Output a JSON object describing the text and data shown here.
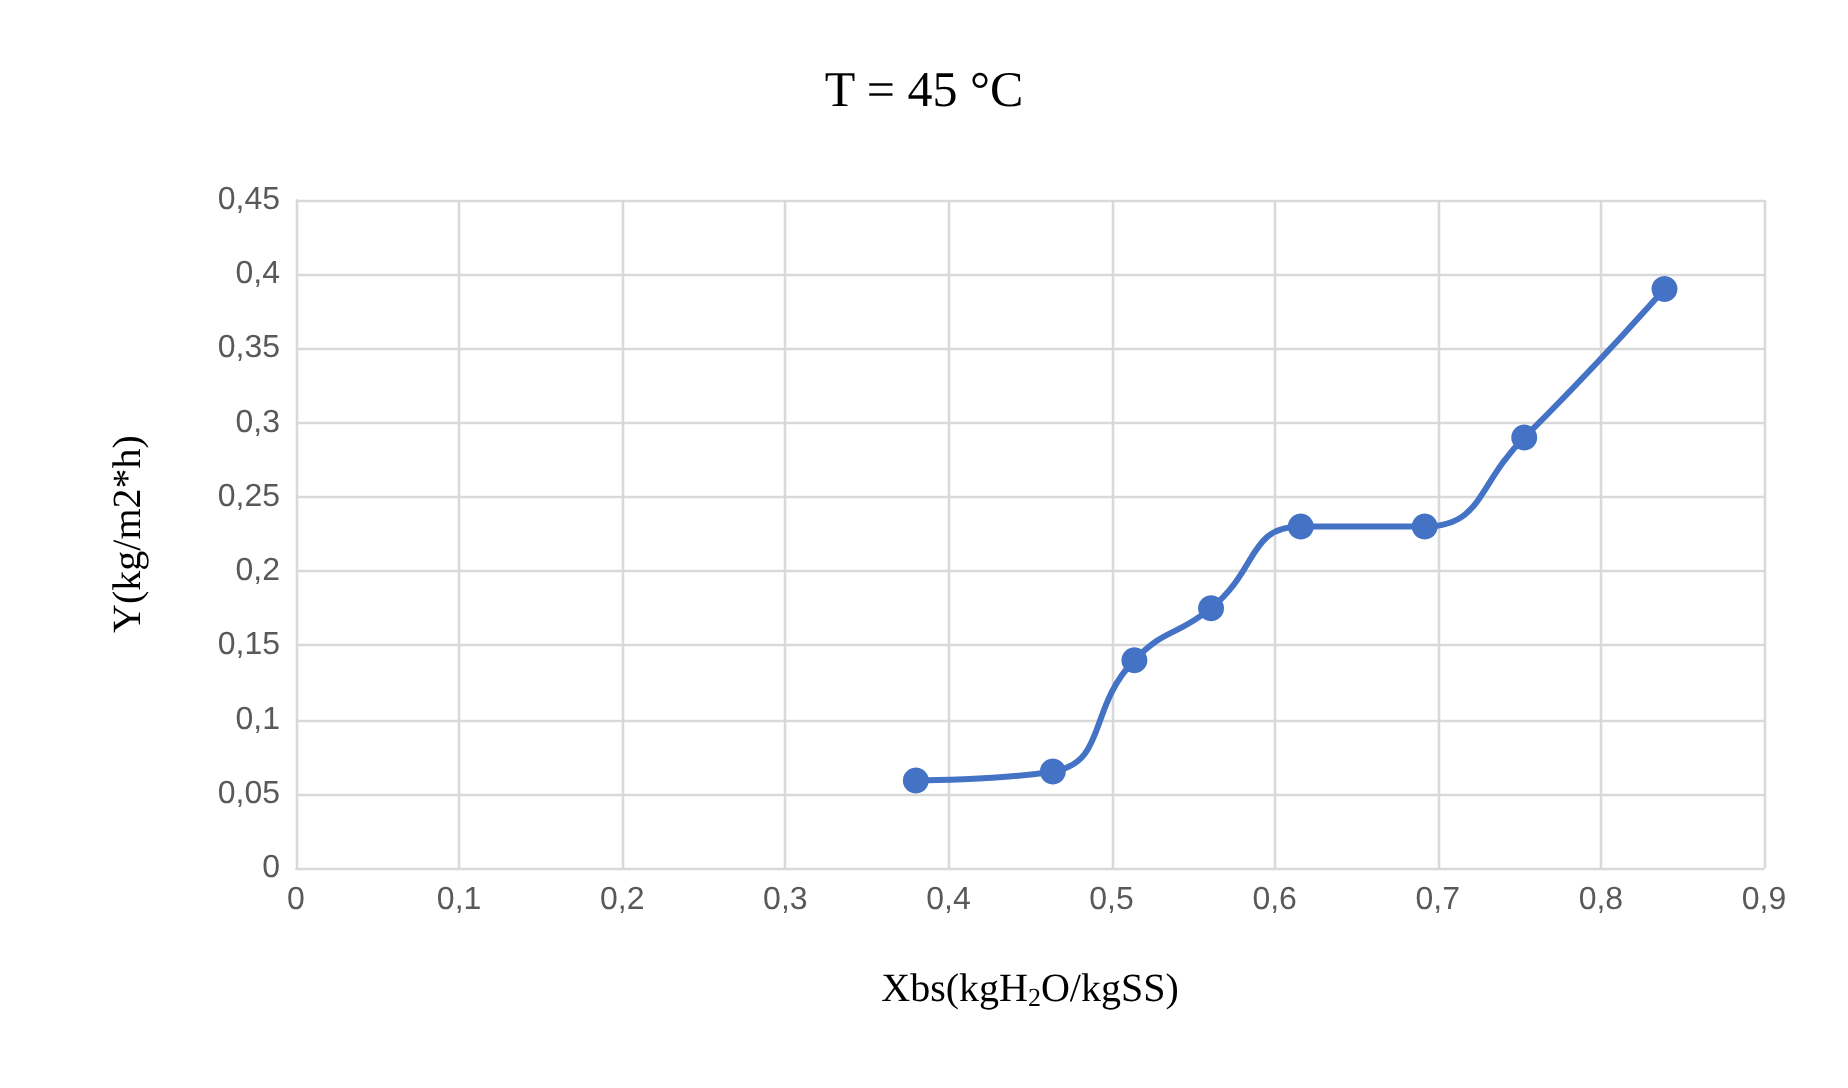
{
  "chart_data": {
    "type": "line",
    "title": "T = 45 °C",
    "xlabel": "Xbs(kgH$_{2}$O/kgSS)",
    "ylabel": "Y(kg/m2*h)",
    "x": [
      0.38,
      0.464,
      0.514,
      0.561,
      0.616,
      0.692,
      0.753,
      0.839
    ],
    "series": [
      {
        "color": "#4472c4",
        "values": [
          0.059,
          0.065,
          0.14,
          0.175,
          0.23,
          0.23,
          0.29,
          0.39
        ]
      }
    ],
    "xlim": [
      0,
      0.9
    ],
    "xticks": [
      0,
      {
        "value": 0.1,
        "label": "0,1"
      },
      {
        "value": 0.2,
        "label": "0,2"
      },
      {
        "value": 0.3,
        "label": "0,3"
      },
      {
        "value": 0.4,
        "label": "0,4"
      },
      {
        "value": 0.5,
        "label": "0,5"
      },
      {
        "value": 0.6,
        "label": "0,6"
      },
      {
        "value": 0.7,
        "label": "0,7"
      },
      {
        "value": 0.8,
        "label": "0,8"
      },
      {
        "value": 0.9,
        "label": "0,9"
      }
    ],
    "ylim": [
      0,
      0.45
    ],
    "yticks": [
      0,
      {
        "value": 0.05,
        "label": "0,05"
      },
      {
        "value": 0.1,
        "label": "0,1"
      },
      {
        "value": 0.15,
        "label": "0,15"
      },
      {
        "value": 0.2,
        "label": "0,2"
      },
      {
        "value": 0.25,
        "label": "0,25"
      },
      {
        "value": 0.3,
        "label": "0,3"
      },
      {
        "value": 0.35,
        "label": "0,35"
      },
      {
        "value": 0.4,
        "label": "0,4"
      },
      {
        "value": 0.45,
        "label": "0,45"
      }
    ],
    "grid": true,
    "marker": "circle",
    "line_style": "solid"
  }
}
